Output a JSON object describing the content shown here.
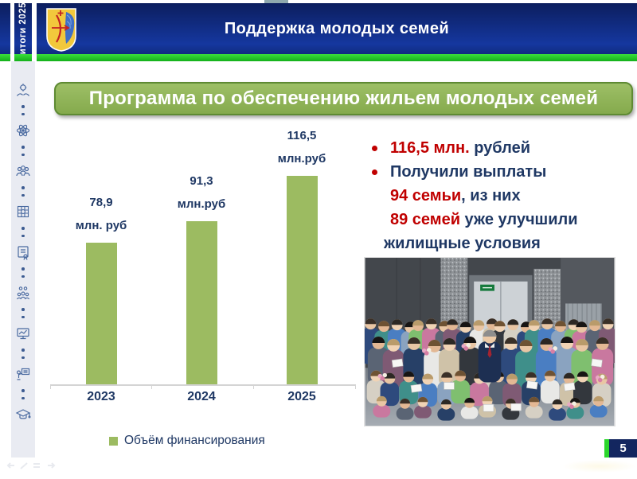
{
  "page": {
    "number": "5"
  },
  "side_tab": {
    "label": "итоги 2025"
  },
  "header": {
    "title": "Поддержка молодых семей"
  },
  "banner": {
    "title": "Программа по обеспечению жильем молодых семей"
  },
  "chart_data": {
    "type": "bar",
    "title": "",
    "categories": [
      "2023",
      "2024",
      "2025"
    ],
    "values": [
      78.9,
      91.3,
      116.5
    ],
    "bar_value_labels": [
      "78,9",
      "91,3",
      "116,5"
    ],
    "bar_unit_labels": [
      "млн. руб",
      "млн.руб",
      "млн.руб"
    ],
    "legend": "Объём финансирования",
    "legend_position": "bottom",
    "xlabel": "",
    "ylabel": "",
    "ylim": [
      0,
      130
    ],
    "grid": false,
    "bar_color": "#9CBB61",
    "label_color": "#1F3864"
  },
  "highlights": {
    "bullet1": {
      "amount": "116,5 млн.",
      "rest": " рублей"
    },
    "bullet2": {
      "line1": "Получили выплаты",
      "families_paid": "94 семьи",
      "line2_rest": ", из них",
      "families_improved": "89 семей",
      "line3_rest": " уже улучшили",
      "line4": "жилищные условия"
    }
  },
  "sidebar_icons": [
    "support-hands-gear-icon",
    "atom-icon",
    "people-group-icon",
    "industry-grid-icon",
    "certificate-icon",
    "team-gears-icon",
    "monitor-chart-icon",
    "training-presenter-icon",
    "graduation-cap-icon"
  ],
  "colors": {
    "accent_red": "#C00000",
    "navy_text": "#1F3864",
    "green_strip": "#2BD62B",
    "banner_green": "#8DB456",
    "header_blue": "#122E86",
    "bar_green": "#9CBB61"
  }
}
